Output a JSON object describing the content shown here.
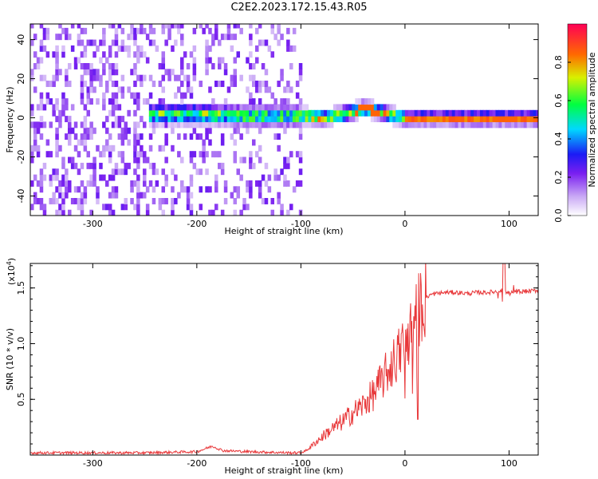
{
  "title": "C2E2.2023.172.15.43.R05",
  "colors": {
    "snr_line": "#e8383a",
    "axis": "#000000"
  },
  "chart_data": [
    {
      "type": "heatmap",
      "xlabel": "Height of straight line (km)",
      "ylabel": "Frequency (Hz)",
      "xlim": [
        -360,
        128
      ],
      "ylim": [
        -50,
        48
      ],
      "xticks": [
        -300,
        -200,
        -100,
        0,
        100
      ],
      "yticks": [
        -40,
        -20,
        0,
        20,
        40
      ],
      "colorbar": {
        "label": "Normalized spectral amplitude",
        "range": [
          0,
          1
        ],
        "ticks": [
          0.0,
          0.2,
          0.4,
          0.6,
          0.8
        ]
      },
      "ridge": [
        {
          "x": -245,
          "y": 2
        },
        {
          "x": -200,
          "y": 2
        },
        {
          "x": -150,
          "y": 1
        },
        {
          "x": -100,
          "y": 1
        },
        {
          "x": -80,
          "y": 0
        },
        {
          "x": -60,
          "y": 2
        },
        {
          "x": -40,
          "y": 5
        },
        {
          "x": -25,
          "y": 3
        },
        {
          "x": -10,
          "y": 1
        },
        {
          "x": 0,
          "y": 0
        },
        {
          "x": 60,
          "y": 0
        },
        {
          "x": 128,
          "y": 0
        }
      ]
    },
    {
      "type": "line",
      "xlabel": "Height of straight line (km)",
      "ylabel": "SNR (10 * v/v)",
      "yscale_label": "(x10",
      "yscale_exp": "4",
      "yscale_close": ")",
      "xlim": [
        -360,
        128
      ],
      "ylim": [
        0,
        1.72
      ],
      "xticks": [
        -300,
        -200,
        -100,
        0,
        100
      ],
      "yticks": [
        0.5,
        1.0,
        1.5
      ],
      "series": [
        {
          "x": [
            -360,
            -250,
            -200,
            -185,
            -175,
            -150,
            -110,
            -100,
            -95,
            -85,
            -75,
            -60,
            -50,
            -40,
            -30,
            -20,
            -10,
            0,
            10,
            15,
            20,
            25,
            30,
            40,
            50,
            60,
            70,
            80,
            90,
            95,
            100,
            110,
            120,
            128
          ],
          "y": [
            0.02,
            0.02,
            0.03,
            0.08,
            0.04,
            0.03,
            0.02,
            0.02,
            0.04,
            0.12,
            0.2,
            0.3,
            0.38,
            0.45,
            0.55,
            0.7,
            0.85,
            1.0,
            1.2,
            1.35,
            1.42,
            1.44,
            1.45,
            1.46,
            1.46,
            1.45,
            1.46,
            1.46,
            1.47,
            1.5,
            1.45,
            1.47,
            1.47,
            1.48
          ]
        }
      ]
    }
  ]
}
